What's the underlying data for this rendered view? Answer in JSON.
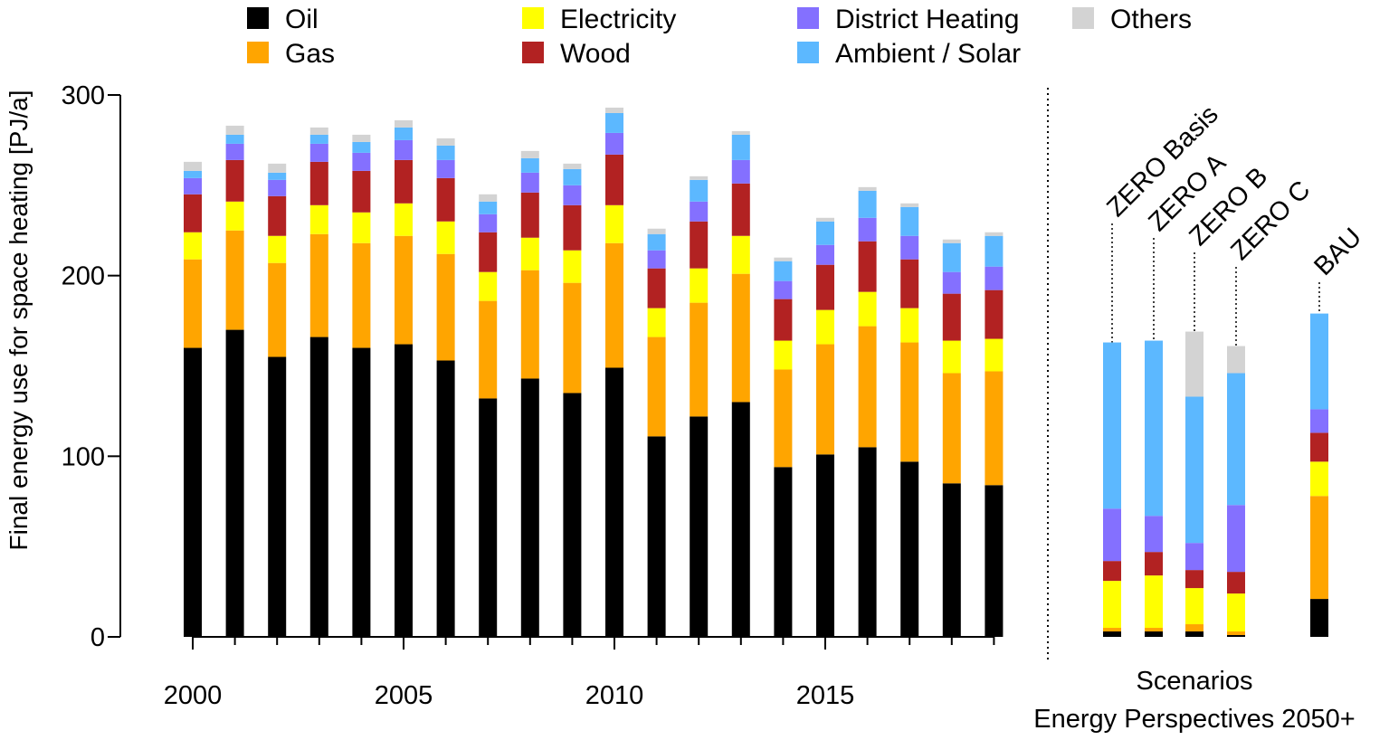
{
  "chart_data": {
    "type": "bar",
    "stacked": true,
    "ylabel": "Final energy use for space heating [PJ/a]",
    "ylim": [
      0,
      300
    ],
    "yticks": [
      0,
      100,
      200,
      300
    ],
    "xticks": [
      2000,
      2005,
      2010,
      2015
    ],
    "xtick_labels": [
      "2000",
      "2005",
      "2010",
      "2015"
    ],
    "legend_position": "top",
    "series": [
      {
        "name": "Oil",
        "color": "#000000"
      },
      {
        "name": "Gas",
        "color": "#FFA500"
      },
      {
        "name": "Electricity",
        "color": "#FFFF00"
      },
      {
        "name": "Wood",
        "color": "#B22222"
      },
      {
        "name": "District Heating",
        "color": "#8470FF"
      },
      {
        "name": "Ambient / Solar",
        "color": "#5CB8FF"
      },
      {
        "name": "Others",
        "color": "#D3D3D3"
      }
    ],
    "legend_order": [
      "Oil",
      "Gas",
      "Electricity",
      "Wood",
      "District Heating",
      "Ambient / Solar",
      "Others"
    ],
    "years": [
      2000,
      2001,
      2002,
      2003,
      2004,
      2005,
      2006,
      2007,
      2008,
      2009,
      2010,
      2011,
      2012,
      2013,
      2014,
      2015,
      2016,
      2017,
      2018,
      2019
    ],
    "historical": [
      [
        160,
        49,
        15,
        21,
        9,
        4,
        5
      ],
      [
        170,
        55,
        16,
        23,
        9,
        5,
        5
      ],
      [
        155,
        52,
        15,
        22,
        9,
        4,
        5
      ],
      [
        166,
        57,
        16,
        24,
        10,
        5,
        4
      ],
      [
        160,
        58,
        17,
        23,
        10,
        6,
        4
      ],
      [
        162,
        60,
        18,
        24,
        11,
        7,
        4
      ],
      [
        153,
        59,
        18,
        24,
        10,
        8,
        4
      ],
      [
        132,
        54,
        16,
        22,
        10,
        7,
        4
      ],
      [
        143,
        60,
        18,
        25,
        11,
        8,
        4
      ],
      [
        135,
        61,
        18,
        25,
        11,
        9,
        3
      ],
      [
        149,
        69,
        21,
        28,
        12,
        11,
        3
      ],
      [
        111,
        55,
        16,
        22,
        10,
        9,
        3
      ],
      [
        122,
        63,
        19,
        26,
        11,
        12,
        2
      ],
      [
        130,
        71,
        21,
        29,
        13,
        14,
        2
      ],
      [
        94,
        54,
        16,
        23,
        10,
        11,
        2
      ],
      [
        101,
        61,
        19,
        25,
        11,
        13,
        2
      ],
      [
        105,
        67,
        19,
        28,
        13,
        15,
        2
      ],
      [
        97,
        66,
        19,
        27,
        13,
        16,
        2
      ],
      [
        85,
        61,
        18,
        26,
        12,
        16,
        2
      ],
      [
        84,
        63,
        18,
        27,
        13,
        17,
        2
      ]
    ],
    "scenario_group_label": "Scenarios",
    "scenario_group_sublabel": "Energy Perspectives 2050+",
    "scenarios": [
      {
        "name": "ZERO Basis",
        "values": [
          3,
          2,
          26,
          11,
          29,
          92,
          0
        ]
      },
      {
        "name": "ZERO A",
        "values": [
          3,
          2,
          29,
          13,
          20,
          97,
          0
        ]
      },
      {
        "name": "ZERO B",
        "values": [
          3,
          4,
          20,
          10,
          15,
          81,
          36
        ]
      },
      {
        "name": "ZERO C",
        "values": [
          1,
          2,
          21,
          12,
          37,
          73,
          15
        ]
      },
      {
        "name": "BAU",
        "values": [
          21,
          57,
          19,
          16,
          13,
          53,
          0
        ]
      }
    ]
  }
}
